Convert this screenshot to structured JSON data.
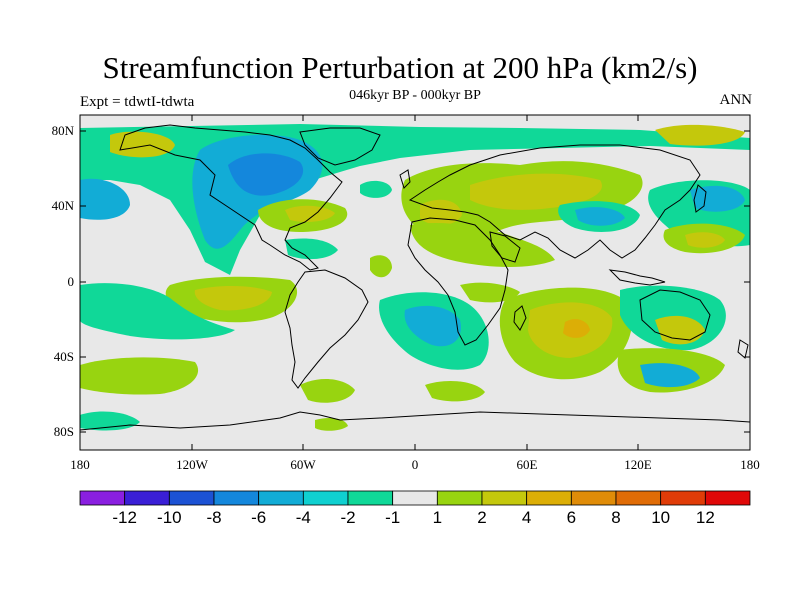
{
  "title": "Streamfunction Perturbation at 200 hPa (km2/s)",
  "subtitle": "046kyr BP - 000kyr BP",
  "left_label": "Expt = tdwtI-tdwta",
  "right_label": "ANN",
  "lat_ticks": [
    "80N",
    "40N",
    "0",
    "40S",
    "80S"
  ],
  "lon_ticks": [
    "180",
    "120W",
    "60W",
    "0",
    "60E",
    "120E",
    "180"
  ],
  "colorbar": {
    "colors": [
      "#8a1fe0",
      "#3a1fd6",
      "#1c52d4",
      "#1487dc",
      "#12acd6",
      "#10d0d0",
      "#10d898",
      "#e8e8e8",
      "#98d410",
      "#c4c80c",
      "#dcae06",
      "#e08c08",
      "#e06c06",
      "#e03c08",
      "#e00808"
    ],
    "labels": [
      "-12",
      "-10",
      "-8",
      "-6",
      "-4",
      "-2",
      "-1",
      "1",
      "2",
      "4",
      "6",
      "8",
      "10",
      "12"
    ]
  }
}
